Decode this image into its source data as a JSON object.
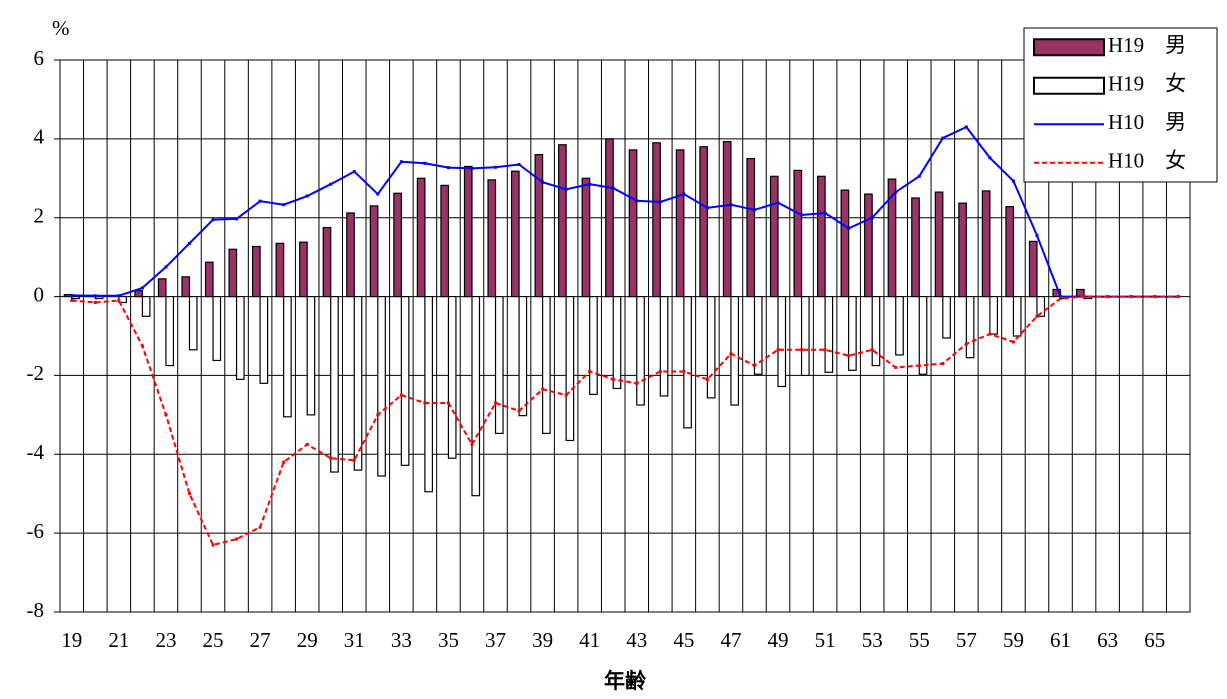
{
  "chart_data": {
    "type": "bar",
    "y_unit": "%",
    "x_label": "年齢",
    "categories": [
      "19",
      null,
      "21",
      null,
      "23",
      null,
      "25",
      null,
      "27",
      null,
      "29",
      null,
      "31",
      null,
      "33",
      null,
      "35",
      null,
      "37",
      null,
      "39",
      null,
      "41",
      null,
      "43",
      null,
      "45",
      null,
      "47",
      null,
      "49",
      null,
      "51",
      null,
      "53",
      null,
      "55",
      null,
      "57",
      null,
      "59",
      null,
      "61",
      null,
      "63",
      null,
      "65",
      null
    ],
    "series": [
      {
        "name": "H19　男",
        "type": "bar",
        "color": "#993366",
        "values": [
          0.05,
          0.03,
          0,
          0.15,
          0.45,
          0.5,
          0.87,
          1.2,
          1.27,
          1.35,
          1.38,
          1.75,
          2.12,
          2.3,
          2.62,
          3.0,
          2.82,
          3.3,
          2.96,
          3.18,
          3.6,
          3.85,
          3.0,
          4.0,
          3.72,
          3.9,
          3.72,
          3.8,
          3.93,
          3.5,
          3.05,
          3.2,
          3.05,
          2.7,
          2.6,
          2.98,
          2.5,
          2.65,
          2.37,
          2.68,
          2.28,
          1.4,
          0.18,
          0.18,
          0,
          0,
          0,
          0
        ]
      },
      {
        "name": "H19　女",
        "type": "bar",
        "color": "#ffffff",
        "values": [
          -0.05,
          -0.05,
          -0.15,
          -0.5,
          -1.75,
          -1.35,
          -1.62,
          -2.1,
          -2.2,
          -3.05,
          -3.0,
          -4.45,
          -4.4,
          -4.55,
          -4.28,
          -4.95,
          -4.1,
          -5.05,
          -3.47,
          -3.02,
          -3.47,
          -3.65,
          -2.48,
          -2.33,
          -2.75,
          -2.52,
          -3.33,
          -2.57,
          -2.75,
          -1.97,
          -2.28,
          -2.0,
          -1.92,
          -1.87,
          -1.75,
          -1.48,
          -1.97,
          -1.05,
          -1.55,
          -0.95,
          -1.0,
          -0.5,
          -0.05,
          -0.05,
          0,
          0,
          0,
          0
        ]
      },
      {
        "name": "H10　男",
        "type": "line",
        "color": "#0000ff",
        "values": [
          0.03,
          0.02,
          0.02,
          0.22,
          0.75,
          1.35,
          1.95,
          1.97,
          2.42,
          2.33,
          2.55,
          2.85,
          3.17,
          2.6,
          3.42,
          3.38,
          3.27,
          3.25,
          3.28,
          3.35,
          2.9,
          2.72,
          2.85,
          2.75,
          2.43,
          2.4,
          2.6,
          2.25,
          2.33,
          2.2,
          2.38,
          2.07,
          2.12,
          1.73,
          2.0,
          2.65,
          3.05,
          4.02,
          4.3,
          3.52,
          2.93,
          1.55,
          0,
          0,
          0,
          0,
          0,
          0
        ]
      },
      {
        "name": "H10　女",
        "type": "line",
        "color": "#ff0000",
        "dashed": true,
        "values": [
          -0.1,
          -0.15,
          -0.1,
          -1.25,
          -3.0,
          -5.0,
          -6.3,
          -6.15,
          -5.85,
          -4.2,
          -3.75,
          -4.1,
          -4.15,
          -3.0,
          -2.5,
          -2.7,
          -2.7,
          -3.75,
          -2.7,
          -2.9,
          -2.35,
          -2.5,
          -1.9,
          -2.1,
          -2.2,
          -1.9,
          -1.9,
          -2.1,
          -1.45,
          -1.75,
          -1.35,
          -1.35,
          -1.35,
          -1.5,
          -1.35,
          -1.8,
          -1.75,
          -1.7,
          -1.2,
          -0.95,
          -1.15,
          -0.5,
          -0.05,
          0,
          0,
          0,
          0,
          0
        ]
      }
    ],
    "ylim": [
      -8,
      6
    ],
    "yticks": [
      -8,
      -6,
      -4,
      -2,
      0,
      2,
      4,
      6
    ],
    "grid": true,
    "legend": "top-right"
  }
}
